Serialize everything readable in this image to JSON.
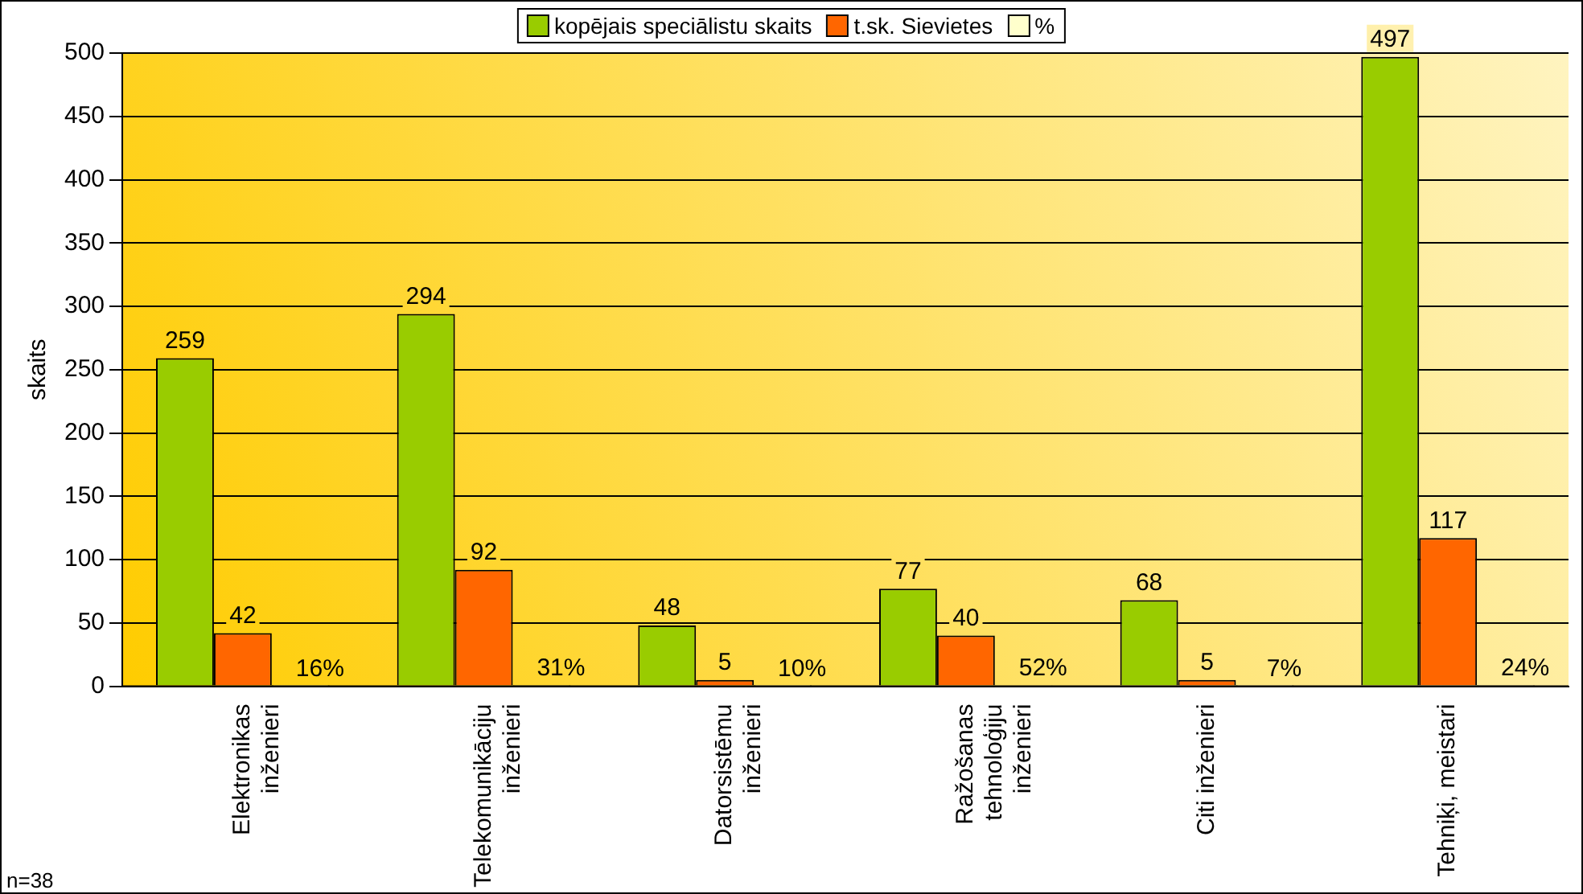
{
  "chart_data": {
    "type": "bar",
    "ylabel": "skaits",
    "categories": [
      "Elektronikas\ninženieri",
      "Telekomunikāciju\ninženieri",
      "Datorsistēmu\ninženieri",
      "Ražošanas\ntehnoloģiju\ninženieri",
      "Citi inženieri",
      "Tehniķi, meistari"
    ],
    "series": [
      {
        "name": "kopējais speciālistu skaits",
        "color": "#99cc00",
        "values": [
          259,
          294,
          48,
          77,
          68,
          497
        ],
        "value_labels": [
          "259",
          "294",
          "48",
          "77",
          "68",
          "497"
        ]
      },
      {
        "name": "t.sk. Sievietes",
        "color": "#ff6600",
        "values": [
          42,
          92,
          5,
          40,
          5,
          117
        ],
        "value_labels": [
          "42",
          "92",
          "5",
          "40",
          "5",
          "117"
        ]
      },
      {
        "name": "%",
        "color": "#ffffcc",
        "values": [
          0.16,
          0.31,
          0.1,
          0.52,
          0.07,
          0.24
        ],
        "value_labels": [
          "16%",
          "31%",
          "10%",
          "52%",
          "7%",
          "24%"
        ]
      }
    ],
    "ylim": [
      0,
      500
    ],
    "yticks": [
      0,
      50,
      100,
      150,
      200,
      250,
      300,
      350,
      400,
      450,
      500
    ],
    "grid": "y",
    "legend": "top",
    "annotations": [
      "n=38"
    ]
  }
}
